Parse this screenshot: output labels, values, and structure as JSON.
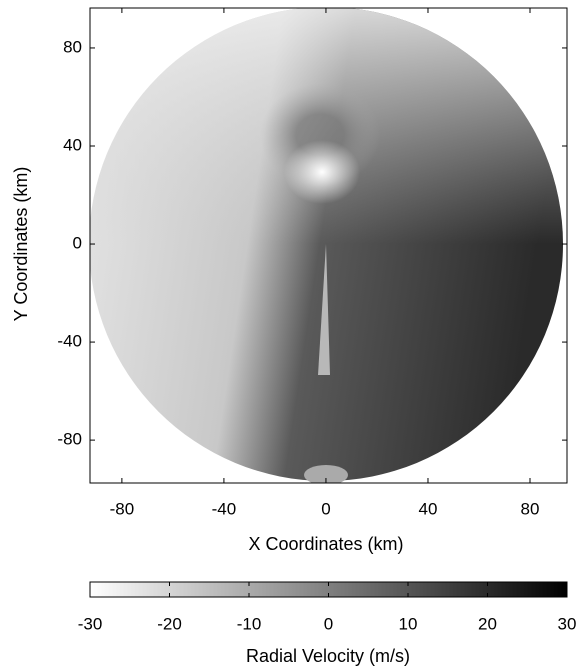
{
  "chart_data": {
    "type": "radar-image",
    "xlabel": "X Coordinates (km)",
    "ylabel": "Y Coordinates (km)",
    "xlim": [
      -92.5,
      94.5
    ],
    "ylim": [
      -97.5,
      96.3
    ],
    "xticks": [
      -80,
      -40,
      0,
      40,
      80
    ],
    "yticks": [
      -80,
      -40,
      0,
      40,
      80
    ],
    "colorbar": {
      "label": "Radial Velocity (m/s)",
      "lim": [
        -30,
        30
      ],
      "ticks": [
        -30,
        -20,
        -10,
        0,
        10,
        20,
        30
      ],
      "colors": [
        "#ffffff",
        "#000000"
      ]
    }
  }
}
